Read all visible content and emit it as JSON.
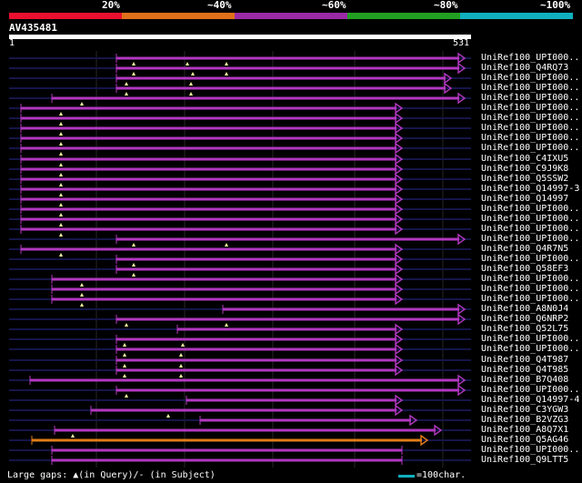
{
  "scale": {
    "labels": [
      "20%",
      "~40%",
      "~60%",
      "~80%",
      "~100%"
    ],
    "colors": [
      "#e8102e",
      "#e0701a",
      "#9a2aa6",
      "#22a022",
      "#10b0c0"
    ]
  },
  "query": {
    "name": "AV435481",
    "start": "1",
    "end": "531"
  },
  "colors": {
    "hit": "#b238c0",
    "hit_orange": "#e07d18",
    "gap": "#15154a",
    "grid": "#262626"
  },
  "hits": [
    {
      "label": "UniRef100_UPI000..",
      "line": [
        10,
        518
      ],
      "bar": [
        128,
        511
      ],
      "arrow": "right",
      "tri": [
        147,
        206,
        249
      ]
    },
    {
      "label": "UniRef100_Q4RQ73",
      "line": [
        10,
        518
      ],
      "bar": [
        128,
        511
      ],
      "arrow": "right",
      "tri": [
        147,
        212,
        249
      ]
    },
    {
      "label": "UniRef100_UPI000..",
      "line": [
        10,
        518
      ],
      "bar": [
        128,
        496
      ],
      "arrow": "right",
      "tri": [
        139,
        210
      ]
    },
    {
      "label": "UniRef100_UPI000..",
      "line": [
        10,
        518
      ],
      "bar": [
        128,
        496
      ],
      "arrow": "right",
      "tri": [
        139,
        210
      ]
    },
    {
      "label": "UniRef100_UPI000..",
      "line": [
        10,
        518
      ],
      "bar": [
        57,
        511
      ],
      "arrow": "right",
      "tri": [
        90
      ]
    },
    {
      "label": "UniRef100_UPI000..",
      "line": [
        10,
        518
      ],
      "bar": [
        23,
        442
      ],
      "arrow": "right",
      "tri": [
        67
      ]
    },
    {
      "label": "UniRef100_UPI000..",
      "line": [
        10,
        518
      ],
      "bar": [
        23,
        442
      ],
      "arrow": "right",
      "tri": [
        67
      ]
    },
    {
      "label": "UniRef100_UPI000..",
      "line": [
        10,
        518
      ],
      "bar": [
        23,
        442
      ],
      "arrow": "right",
      "tri": [
        67
      ]
    },
    {
      "label": "UniRef100_UPI000..",
      "line": [
        10,
        518
      ],
      "bar": [
        23,
        442
      ],
      "arrow": "right",
      "tri": [
        67
      ]
    },
    {
      "label": "UniRef100_UPI000..",
      "line": [
        10,
        518
      ],
      "bar": [
        23,
        442
      ],
      "arrow": "right",
      "tri": [
        67
      ]
    },
    {
      "label": "UniRef100_C4IXU5",
      "line": [
        10,
        518
      ],
      "bar": [
        23,
        442
      ],
      "arrow": "right",
      "tri": [
        67
      ]
    },
    {
      "label": "UniRef100_C9J9K8",
      "line": [
        10,
        518
      ],
      "bar": [
        23,
        442
      ],
      "arrow": "right",
      "tri": [
        67
      ]
    },
    {
      "label": "UniRef100_Q5SSW2",
      "line": [
        10,
        518
      ],
      "bar": [
        23,
        442
      ],
      "arrow": "right",
      "tri": [
        67
      ]
    },
    {
      "label": "UniRef100_Q14997-3",
      "line": [
        10,
        518
      ],
      "bar": [
        23,
        442
      ],
      "arrow": "right",
      "tri": [
        67
      ]
    },
    {
      "label": "UniRef100_Q14997",
      "line": [
        10,
        518
      ],
      "bar": [
        23,
        442
      ],
      "arrow": "right",
      "tri": [
        67
      ]
    },
    {
      "label": "UniRef100_UPI000..",
      "line": [
        10,
        518
      ],
      "bar": [
        23,
        442
      ],
      "arrow": "right",
      "tri": [
        67
      ]
    },
    {
      "label": "UniRef100_UPI000..",
      "line": [
        10,
        518
      ],
      "bar": [
        23,
        442
      ],
      "arrow": "right",
      "tri": [
        67
      ]
    },
    {
      "label": "UniRef100_UPI000..",
      "line": [
        10,
        518
      ],
      "bar": [
        23,
        442
      ],
      "arrow": "right",
      "tri": [
        67
      ]
    },
    {
      "label": "UniRef100_UPI000..",
      "line": [
        10,
        518
      ],
      "bar": [
        128,
        511
      ],
      "arrow": "right",
      "tri": [
        147,
        249
      ]
    },
    {
      "label": "UniRef100_Q4R7N5",
      "line": [
        10,
        518
      ],
      "bar": [
        23,
        442
      ],
      "arrow": "right",
      "tri": [
        67
      ]
    },
    {
      "label": "UniRef100_UPI000..",
      "line": [
        10,
        518
      ],
      "bar": [
        128,
        442
      ],
      "arrow": "right",
      "tri": [
        147
      ]
    },
    {
      "label": "UniRef100_Q58EF3",
      "line": [
        10,
        518
      ],
      "bar": [
        128,
        442
      ],
      "arrow": "right",
      "tri": [
        147
      ]
    },
    {
      "label": "UniRef100_UPI000..",
      "line": [
        10,
        518
      ],
      "bar": [
        57,
        442
      ],
      "arrow": "right",
      "tri": [
        90
      ]
    },
    {
      "label": "UniRef100_UPI000..",
      "line": [
        10,
        518
      ],
      "bar": [
        57,
        442
      ],
      "arrow": "right",
      "tri": [
        90
      ]
    },
    {
      "label": "UniRef100_UPI000..",
      "line": [
        10,
        518
      ],
      "bar": [
        57,
        442
      ],
      "arrow": "right",
      "tri": [
        90
      ]
    },
    {
      "label": "UniRef100_A8N0J4",
      "line": [
        10,
        518
      ],
      "bar": [
        245,
        511
      ],
      "arrow": "right",
      "tri": []
    },
    {
      "label": "UniRef100_Q6NRP2",
      "line": [
        10,
        518
      ],
      "bar": [
        128,
        511
      ],
      "arrow": "right",
      "tri": [
        139,
        249
      ]
    },
    {
      "label": "UniRef100_Q52L75",
      "line": [
        10,
        518
      ],
      "bar": [
        195,
        442
      ],
      "arrow": "right",
      "tri": []
    },
    {
      "label": "UniRef100_UPI000..",
      "line": [
        10,
        518
      ],
      "bar": [
        128,
        442
      ],
      "arrow": "right",
      "tri": [
        137,
        201
      ]
    },
    {
      "label": "UniRef100_UPI000..",
      "line": [
        10,
        518
      ],
      "bar": [
        128,
        442
      ],
      "arrow": "right",
      "tri": [
        137,
        199
      ]
    },
    {
      "label": "UniRef100_Q4T987",
      "line": [
        10,
        518
      ],
      "bar": [
        128,
        442
      ],
      "arrow": "right",
      "tri": [
        137,
        199
      ]
    },
    {
      "label": "UniRef100_Q4T985",
      "line": [
        10,
        518
      ],
      "bar": [
        128,
        442
      ],
      "arrow": "right",
      "tri": [
        137,
        199
      ]
    },
    {
      "label": "UniRef100_B7Q408",
      "line": [
        10,
        518
      ],
      "bar": [
        33,
        511
      ],
      "arrow": "right",
      "tri": []
    },
    {
      "label": "UniRef100_UPI000..",
      "line": [
        10,
        518
      ],
      "bar": [
        128,
        511
      ],
      "arrow": "right",
      "tri": [
        139
      ]
    },
    {
      "label": "UniRef100_Q14997-4",
      "line": [
        10,
        518
      ],
      "bar": [
        205,
        442
      ],
      "arrow": "right",
      "tri": []
    },
    {
      "label": "UniRef100_C3YGW3",
      "line": [
        10,
        518
      ],
      "bar": [
        100,
        442
      ],
      "arrow": "right",
      "tri": [
        185
      ]
    },
    {
      "label": "UniRef100_B2VZG3",
      "line": [
        10,
        518
      ],
      "bar": [
        220,
        458
      ],
      "arrow": "right",
      "tri": []
    },
    {
      "label": "UniRef100_A8Q7X1",
      "line": [
        10,
        518
      ],
      "bar": [
        60,
        485
      ],
      "arrow": "right",
      "tri": [
        80
      ]
    },
    {
      "label": "UniRef100_Q5AG46",
      "line": [
        10,
        518
      ],
      "bar": [
        35,
        470
      ],
      "arrow": "right",
      "orange": true,
      "tri": []
    },
    {
      "label": "UniRef100_UPI000..",
      "line": [
        10,
        518
      ],
      "bar": [
        57,
        442
      ],
      "arrow": "none",
      "tri": []
    },
    {
      "label": "UniRef100_Q9LTT5",
      "line": [
        10,
        518
      ],
      "bar": [
        57,
        442
      ],
      "arrow": "none",
      "tri": []
    }
  ],
  "legend": {
    "gaps": "Large gaps: ▲(in Query)/- (in Subject)",
    "char": "=100char."
  }
}
